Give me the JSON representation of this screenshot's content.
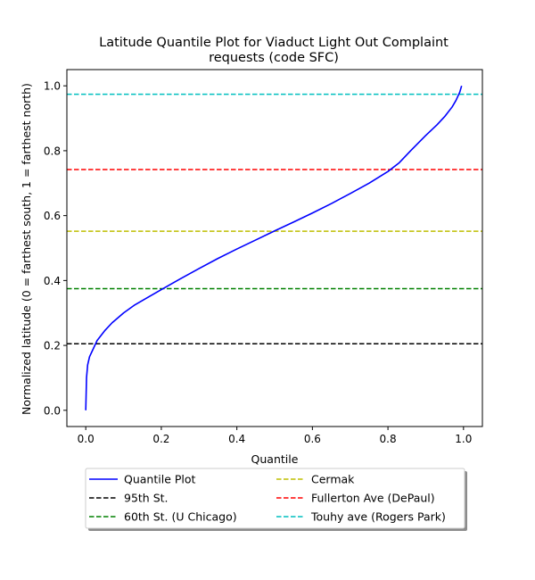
{
  "chart_data": {
    "type": "line",
    "title": [
      "Latitude Quantile Plot for Viaduct Light Out Complaint",
      "requests (code SFC)"
    ],
    "xlabel": "Quantile",
    "ylabel": "Normalized latitude (0 = farthest south, 1 = farthest north)",
    "xlim": [
      -0.05,
      1.05
    ],
    "ylim": [
      -0.05,
      1.05
    ],
    "xticks": [
      0.0,
      0.2,
      0.4,
      0.6,
      0.8,
      1.0
    ],
    "yticks": [
      0.0,
      0.2,
      0.4,
      0.6,
      0.8,
      1.0
    ],
    "xtick_labels": [
      "0.0",
      "0.2",
      "0.4",
      "0.6",
      "0.8",
      "1.0"
    ],
    "ytick_labels": [
      "0.0",
      "0.2",
      "0.4",
      "0.6",
      "0.8",
      "1.0"
    ],
    "grid": false,
    "legend_position": "bottom-center-outside",
    "legend_columns": 2,
    "series": [
      {
        "name": "Quantile Plot",
        "style": "solid",
        "color": "#0000ff",
        "x": [
          0.0,
          0.002,
          0.005,
          0.01,
          0.02,
          0.03,
          0.05,
          0.07,
          0.1,
          0.13,
          0.16,
          0.2,
          0.25,
          0.3,
          0.35,
          0.4,
          0.45,
          0.5,
          0.55,
          0.6,
          0.65,
          0.7,
          0.75,
          0.8,
          0.83,
          0.86,
          0.9,
          0.93,
          0.95,
          0.97,
          0.98,
          0.99,
          0.995
        ],
        "y": [
          0.0,
          0.1,
          0.14,
          0.165,
          0.19,
          0.215,
          0.245,
          0.27,
          0.3,
          0.325,
          0.345,
          0.372,
          0.405,
          0.437,
          0.468,
          0.497,
          0.525,
          0.553,
          0.58,
          0.608,
          0.637,
          0.668,
          0.7,
          0.736,
          0.763,
          0.8,
          0.847,
          0.88,
          0.905,
          0.935,
          0.955,
          0.98,
          1.0
        ]
      },
      {
        "name": "95th St.",
        "style": "dashed",
        "color": "#000000",
        "y": 0.205
      },
      {
        "name": "60th St. (U Chicago)",
        "style": "dashed",
        "color": "#008000",
        "y": 0.375
      },
      {
        "name": "Cermak",
        "style": "dashed",
        "color": "#bfbf00",
        "y": 0.552
      },
      {
        "name": "Fullerton Ave (DePaul)",
        "style": "dashed",
        "color": "#ff0000",
        "y": 0.742
      },
      {
        "name": "Touhy ave (Rogers Park)",
        "style": "dashed",
        "color": "#00bfbf",
        "y": 0.974
      }
    ]
  }
}
